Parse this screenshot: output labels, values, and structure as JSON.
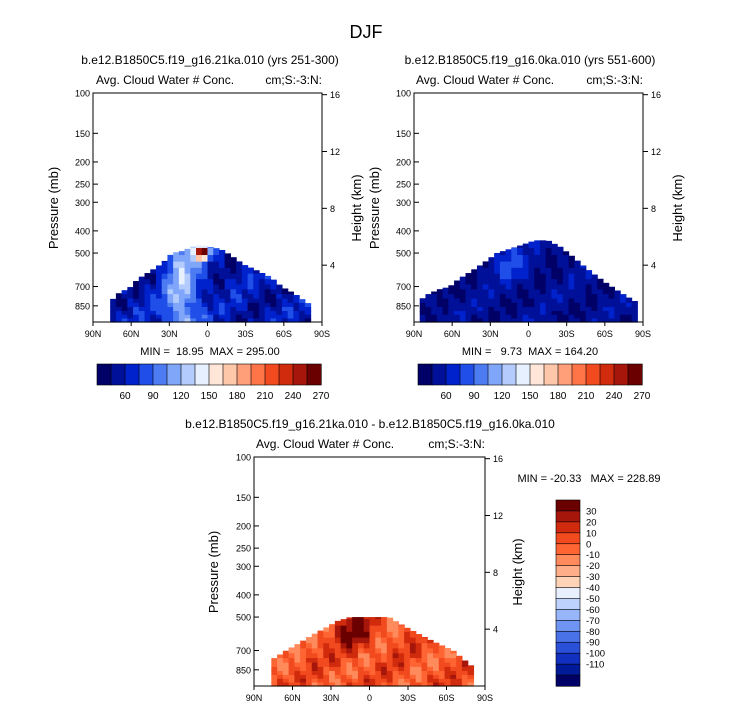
{
  "title": "DJF",
  "palette_main": [
    "#000066",
    "#001099",
    "#0022cc",
    "#1f4fe8",
    "#4d7bf2",
    "#80a6f9",
    "#b3ccfd",
    "#e6f0ff",
    "#ffe6d9",
    "#ffc7aa",
    "#ff9f7a",
    "#ff7547",
    "#f24a1f",
    "#d12b0d",
    "#a6160a",
    "#6b0000"
  ],
  "palette_diff": [
    "#6b0000",
    "#a6160a",
    "#d12b0d",
    "#f24a1f",
    "#ff6433",
    "#ff8a5c",
    "#ffae8a",
    "#ffd3b8",
    "#e8f0ff",
    "#bdd2fd",
    "#97b5f9",
    "#6f94f2",
    "#4a72e8",
    "#2a4fd9",
    "#1230bf",
    "#001a99",
    "#000066"
  ],
  "chart_data": [
    {
      "type": "heatmap",
      "title": "b.e12.B1850C5.f19_g16.21ka.010 (yrs 251-300)",
      "subtitle_left": "Avg. Cloud Water # Conc.",
      "subtitle_right": "cm;S:-3:N:",
      "xlabel": "",
      "ylabel": "Pressure (mb)",
      "ylabel_right": "Height (km)",
      "xticks": [
        "90N",
        "60N",
        "30N",
        "0",
        "30S",
        "60S",
        "90S"
      ],
      "xtick_lat": [
        90,
        60,
        30,
        0,
        -30,
        -60,
        -90
      ],
      "yticks": [
        100,
        150,
        200,
        250,
        300,
        400,
        500,
        700,
        850
      ],
      "ylim": [
        100,
        1000
      ],
      "height_ticks": [
        16,
        12,
        8,
        4
      ],
      "stats": "MIN =  18.95  MAX = 295.00",
      "min": 18.95,
      "max": 295.0,
      "colorbar_labels": [
        "60",
        "90",
        "120",
        "150",
        "180",
        "210",
        "240",
        "270"
      ],
      "contour_levels": [
        45,
        60,
        75,
        90,
        105,
        120,
        135,
        150,
        165,
        180,
        195,
        210,
        225,
        240,
        255,
        270
      ],
      "cloud_top_by_lat": [
        [
          90,
          null
        ],
        [
          80,
          null
        ],
        [
          75,
          800
        ],
        [
          70,
          750
        ],
        [
          60,
          700
        ],
        [
          55,
          650
        ],
        [
          45,
          600
        ],
        [
          35,
          550
        ],
        [
          28,
          500
        ],
        [
          20,
          490
        ],
        [
          12,
          470
        ],
        [
          5,
          460
        ],
        [
          -2,
          470
        ],
        [
          -10,
          480
        ],
        [
          -18,
          510
        ],
        [
          -28,
          560
        ],
        [
          -40,
          600
        ],
        [
          -50,
          640
        ],
        [
          -58,
          700
        ],
        [
          -68,
          750
        ],
        [
          -75,
          800
        ],
        [
          -82,
          850
        ],
        [
          -90,
          null
        ]
      ]
    },
    {
      "type": "heatmap",
      "title": "b.e12.B1850C5.f19_g16.0ka.010 (yrs 551-600)",
      "subtitle_left": "Avg. Cloud Water # Conc.",
      "subtitle_right": "cm;S:-3:N:",
      "xlabel": "",
      "ylabel": "Pressure (mb)",
      "ylabel_right": "Height (km)",
      "xticks": [
        "90N",
        "60N",
        "30N",
        "0",
        "30S",
        "60S",
        "90S"
      ],
      "xtick_lat": [
        90,
        60,
        30,
        0,
        -30,
        -60,
        -90
      ],
      "yticks": [
        100,
        150,
        200,
        250,
        300,
        400,
        500,
        700,
        850
      ],
      "ylim": [
        100,
        1000
      ],
      "height_ticks": [
        16,
        12,
        8,
        4
      ],
      "stats": "MIN =   9.73  MAX = 164.20",
      "min": 9.73,
      "max": 164.2,
      "colorbar_labels": [
        "60",
        "90",
        "120",
        "150",
        "180",
        "210",
        "240",
        "270"
      ],
      "contour_levels": [
        45,
        60,
        75,
        90,
        105,
        120,
        135,
        150,
        165,
        180,
        195,
        210,
        225,
        240,
        255,
        270
      ],
      "cloud_top_by_lat": [
        [
          90,
          null
        ],
        [
          85,
          800
        ],
        [
          78,
          750
        ],
        [
          70,
          720
        ],
        [
          62,
          700
        ],
        [
          55,
          650
        ],
        [
          45,
          600
        ],
        [
          35,
          550
        ],
        [
          25,
          500
        ],
        [
          15,
          480
        ],
        [
          5,
          460
        ],
        [
          -5,
          440
        ],
        [
          -15,
          440
        ],
        [
          -25,
          470
        ],
        [
          -35,
          520
        ],
        [
          -45,
          580
        ],
        [
          -55,
          640
        ],
        [
          -65,
          700
        ],
        [
          -75,
          760
        ],
        [
          -85,
          820
        ],
        [
          -90,
          null
        ]
      ]
    },
    {
      "type": "heatmap",
      "title": "b.e12.B1850C5.f19_g16.21ka.010 - b.e12.B1850C5.f19_g16.0ka.010",
      "subtitle_left": "Avg. Cloud Water # Conc.",
      "subtitle_right": "cm;S:-3:N:",
      "xlabel": "",
      "ylabel": "Pressure (mb)",
      "ylabel_right": "Height (km)",
      "xticks": [
        "90N",
        "60N",
        "30N",
        "0",
        "30S",
        "60S",
        "90S"
      ],
      "xtick_lat": [
        90,
        60,
        30,
        0,
        -30,
        -60,
        -90
      ],
      "yticks": [
        100,
        150,
        200,
        250,
        300,
        400,
        500,
        700,
        850
      ],
      "ylim": [
        100,
        1000
      ],
      "height_ticks": [
        16,
        12,
        8,
        4
      ],
      "stats": "MIN = -20.33   MAX = 228.89",
      "min": -20.33,
      "max": 228.89,
      "colorbar_labels": [
        "30",
        "20",
        "10",
        "0",
        "-10",
        "-20",
        "-30",
        "-40",
        "-50",
        "-60",
        "-70",
        "-80",
        "-90",
        "-100",
        "-110"
      ],
      "cloud_top_by_lat": [
        [
          90,
          null
        ],
        [
          80,
          null
        ],
        [
          75,
          760
        ],
        [
          65,
          700
        ],
        [
          55,
          650
        ],
        [
          45,
          600
        ],
        [
          35,
          560
        ],
        [
          25,
          520
        ],
        [
          15,
          500
        ],
        [
          5,
          500
        ],
        [
          -5,
          500
        ],
        [
          -15,
          500
        ],
        [
          -25,
          540
        ],
        [
          -35,
          580
        ],
        [
          -45,
          620
        ],
        [
          -55,
          660
        ],
        [
          -65,
          700
        ],
        [
          -75,
          780
        ],
        [
          -82,
          840
        ],
        [
          -90,
          null
        ]
      ]
    }
  ]
}
